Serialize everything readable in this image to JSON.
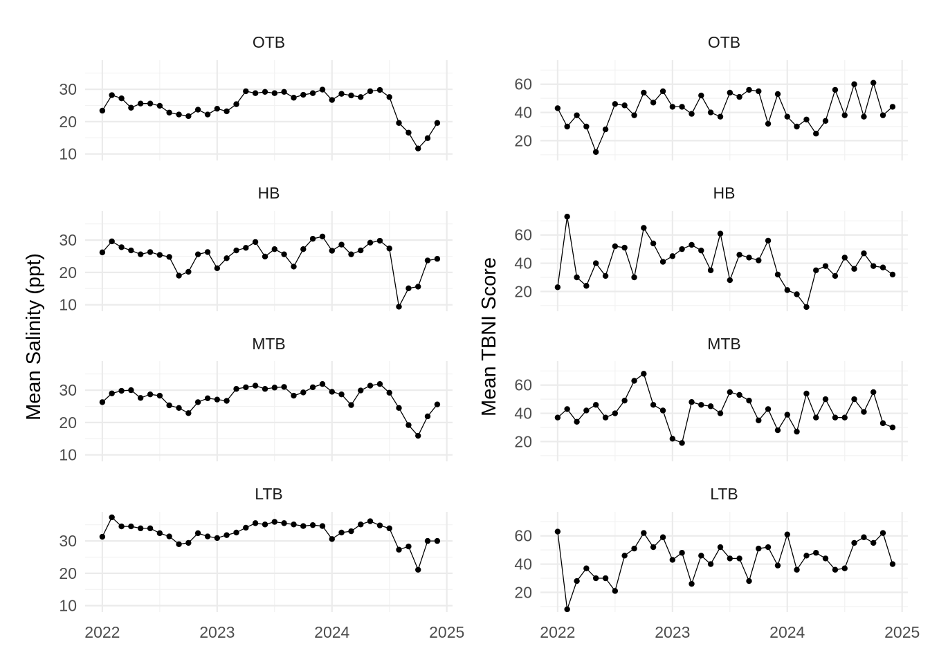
{
  "chart_data": [
    {
      "type": "line",
      "panel": "left",
      "ylabel": "Mean Salinity (ppt)",
      "x_ticks": [
        2022,
        2023,
        2024,
        2025
      ],
      "y_ticks": [
        10,
        20,
        30
      ],
      "xlim": [
        2021.85,
        2025.05
      ],
      "ylim": [
        8,
        39
      ],
      "grid": true,
      "point_color": "#000000",
      "line_color": "#000000",
      "x": [
        2022.0,
        2022.083,
        2022.167,
        2022.25,
        2022.333,
        2022.417,
        2022.5,
        2022.583,
        2022.667,
        2022.75,
        2022.833,
        2022.917,
        2023.0,
        2023.083,
        2023.167,
        2023.25,
        2023.333,
        2023.417,
        2023.5,
        2023.583,
        2023.667,
        2023.75,
        2023.833,
        2023.917,
        2024.0,
        2024.083,
        2024.167,
        2024.25,
        2024.333,
        2024.417,
        2024.5,
        2024.583,
        2024.667,
        2024.75,
        2024.833,
        2024.917
      ],
      "series": [
        {
          "facet": "OTB",
          "values": [
            23.4,
            28.2,
            27.2,
            24.3,
            25.6,
            25.6,
            24.9,
            22.8,
            22.2,
            21.7,
            23.7,
            22.2,
            24.0,
            23.2,
            25.4,
            29.4,
            28.8,
            29.2,
            28.8,
            29.2,
            27.4,
            28.3,
            28.8,
            29.9,
            26.7,
            28.6,
            28.1,
            27.6,
            29.4,
            29.8,
            27.6,
            19.6,
            16.6,
            11.7,
            14.9,
            19.6
          ]
        },
        {
          "facet": "HB",
          "values": [
            26.2,
            29.6,
            27.8,
            26.8,
            25.6,
            26.3,
            25.4,
            24.8,
            19.0,
            20.2,
            25.6,
            26.3,
            21.3,
            24.4,
            26.8,
            27.6,
            29.4,
            24.9,
            27.2,
            25.6,
            21.8,
            27.2,
            30.4,
            31.1,
            26.7,
            28.6,
            25.6,
            26.8,
            29.2,
            29.8,
            27.4,
            9.4,
            15.1,
            15.6,
            23.7,
            24.2
          ]
        },
        {
          "facet": "MTB",
          "values": [
            26.3,
            29.0,
            29.8,
            30.0,
            27.6,
            28.7,
            28.3,
            25.3,
            24.5,
            22.9,
            26.3,
            27.5,
            27.1,
            26.7,
            30.4,
            30.9,
            31.4,
            30.4,
            30.8,
            31.0,
            28.3,
            29.3,
            30.9,
            31.9,
            29.5,
            28.7,
            25.4,
            29.9,
            31.4,
            31.9,
            29.2,
            24.5,
            19.2,
            15.9,
            21.9,
            25.6
          ]
        },
        {
          "facet": "LTB",
          "values": [
            31.3,
            37.3,
            34.5,
            34.5,
            33.9,
            33.9,
            32.4,
            31.4,
            29.0,
            29.4,
            32.4,
            31.4,
            30.9,
            31.8,
            32.6,
            34.1,
            35.5,
            35.1,
            35.9,
            35.5,
            35.1,
            34.6,
            34.9,
            34.6,
            30.6,
            32.6,
            33.0,
            35.1,
            36.1,
            34.8,
            33.9,
            27.3,
            28.3,
            21.1,
            30.0,
            30.0
          ]
        }
      ]
    },
    {
      "type": "line",
      "panel": "right",
      "ylabel": "Mean TBNI Score",
      "x_ticks": [
        2022,
        2023,
        2024,
        2025
      ],
      "y_ticks": [
        20,
        40,
        60
      ],
      "xlim": [
        2021.85,
        2025.05
      ],
      "ylim": [
        6,
        77
      ],
      "grid": true,
      "point_color": "#000000",
      "line_color": "#000000",
      "x": [
        2022.0,
        2022.083,
        2022.167,
        2022.25,
        2022.333,
        2022.417,
        2022.5,
        2022.583,
        2022.667,
        2022.75,
        2022.833,
        2022.917,
        2023.0,
        2023.083,
        2023.167,
        2023.25,
        2023.333,
        2023.417,
        2023.5,
        2023.583,
        2023.667,
        2023.75,
        2023.833,
        2023.917,
        2024.0,
        2024.083,
        2024.167,
        2024.25,
        2024.333,
        2024.417,
        2024.5,
        2024.583,
        2024.667,
        2024.75,
        2024.833,
        2024.917
      ],
      "series": [
        {
          "facet": "OTB",
          "values": [
            43,
            30,
            38,
            30,
            12,
            28,
            46,
            45,
            38,
            54,
            47,
            55,
            44,
            44,
            39,
            52,
            40,
            37,
            54,
            51,
            56,
            55,
            32,
            53,
            37,
            30,
            35,
            25,
            34,
            56,
            38,
            60,
            37,
            61,
            38,
            44
          ]
        },
        {
          "facet": "HB",
          "values": [
            23,
            73,
            30,
            24,
            40,
            31,
            52,
            51,
            30,
            65,
            54,
            41,
            45,
            50,
            53,
            49,
            35,
            61,
            28,
            46,
            44,
            42,
            56,
            32,
            21,
            18,
            9,
            35,
            38,
            31,
            44,
            36,
            47,
            38,
            37,
            32
          ]
        },
        {
          "facet": "MTB",
          "values": [
            37,
            43,
            34,
            42,
            46,
            37,
            40,
            49,
            63,
            68,
            46,
            42,
            22,
            19,
            48,
            46,
            45,
            40,
            55,
            53,
            49,
            35,
            43,
            28,
            39,
            27,
            54,
            37,
            50,
            37,
            37,
            50,
            41,
            55,
            33,
            30
          ]
        },
        {
          "facet": "LTB",
          "values": [
            63,
            8,
            28,
            37,
            30,
            30,
            21,
            46,
            51,
            62,
            52,
            59,
            43,
            48,
            26,
            46,
            40,
            52,
            44,
            44,
            28,
            51,
            52,
            39,
            61,
            36,
            46,
            48,
            44,
            36,
            37,
            55,
            59,
            55,
            62,
            40
          ]
        }
      ]
    }
  ]
}
